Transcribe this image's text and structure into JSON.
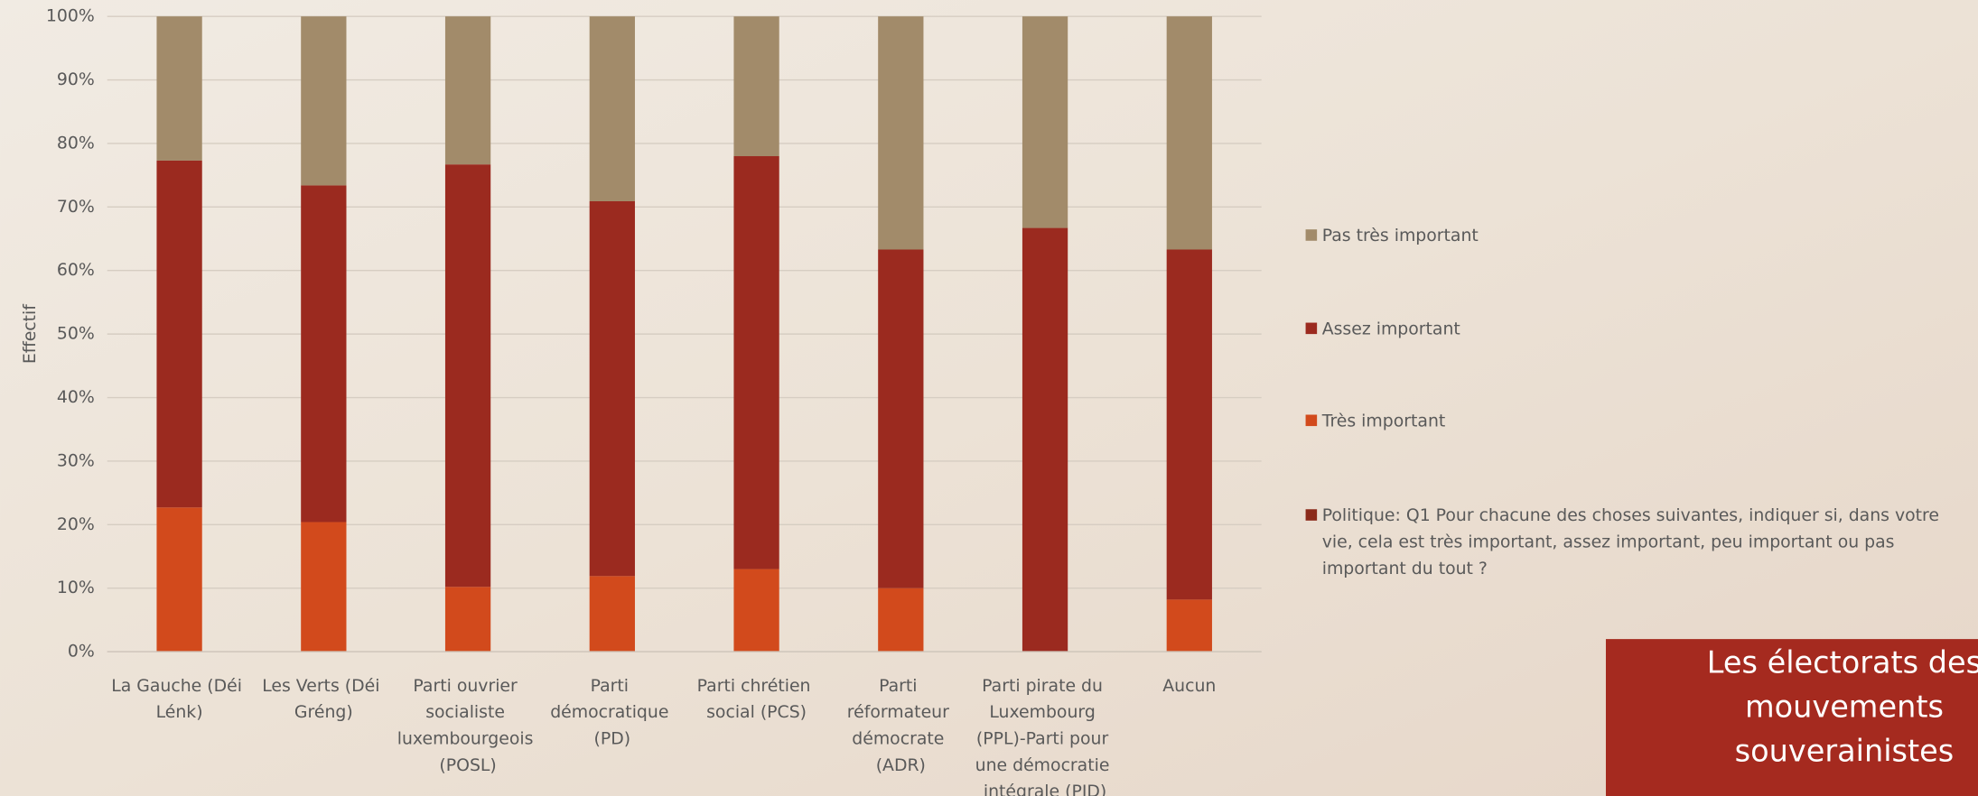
{
  "chart_data": {
    "type": "stacked-bar",
    "y_label": "Effectif",
    "categories": [
      "La Gauche (Déi Lénk)",
      "Les Verts (Déi Gréng)",
      "Parti ouvrier socialiste luxembourgeois (POSL)",
      "Parti démocratique (PD)",
      "Parti chrétien social (PCS)",
      "Parti réformateur démocrate (ADR)",
      "Parti pirate du Luxembourg (PPL)-Parti pour une démocratie intégrale (PID)",
      "Aucun"
    ],
    "series": [
      {
        "name": "Politique: Q1 Pour chacune des choses suivantes, indiquer si, dans votre vie, cela est très important, assez important, peu important ou pas important du tout ?",
        "color": "#8b2a1a",
        "values": [
          0,
          0,
          0,
          0,
          0,
          0,
          0,
          0
        ]
      },
      {
        "name": "Très important",
        "color": "#d24a1c",
        "values": [
          22.7,
          20.4,
          10.2,
          11.9,
          13.0,
          10.0,
          0,
          8.2
        ]
      },
      {
        "name": "Assez important",
        "color": "#9b2a1f",
        "values": [
          54.6,
          53.0,
          66.5,
          59.0,
          65.0,
          53.3,
          66.7,
          55.1
        ]
      },
      {
        "name": "Pas très important",
        "color": "#a28b6a",
        "values": [
          22.7,
          26.6,
          23.3,
          29.1,
          22.0,
          36.7,
          33.3,
          36.7
        ]
      }
    ],
    "ylim": [
      0,
      100
    ],
    "yticks": [
      {
        "value": 0,
        "label": "0%"
      },
      {
        "value": 10,
        "label": "10%"
      },
      {
        "value": 20,
        "label": "20%"
      },
      {
        "value": 30,
        "label": "30%"
      },
      {
        "value": 40,
        "label": "40%"
      },
      {
        "value": 50,
        "label": "50%"
      },
      {
        "value": 60,
        "label": "60%"
      },
      {
        "value": 70,
        "label": "70%"
      },
      {
        "value": 80,
        "label": "80%"
      },
      {
        "value": 90,
        "label": "90%"
      },
      {
        "value": 100,
        "label": "100%"
      }
    ],
    "grid": true,
    "legend": "right"
  },
  "banner": {
    "lines": [
      "Les électorats des",
      "mouvements",
      "souverainistes"
    ]
  }
}
